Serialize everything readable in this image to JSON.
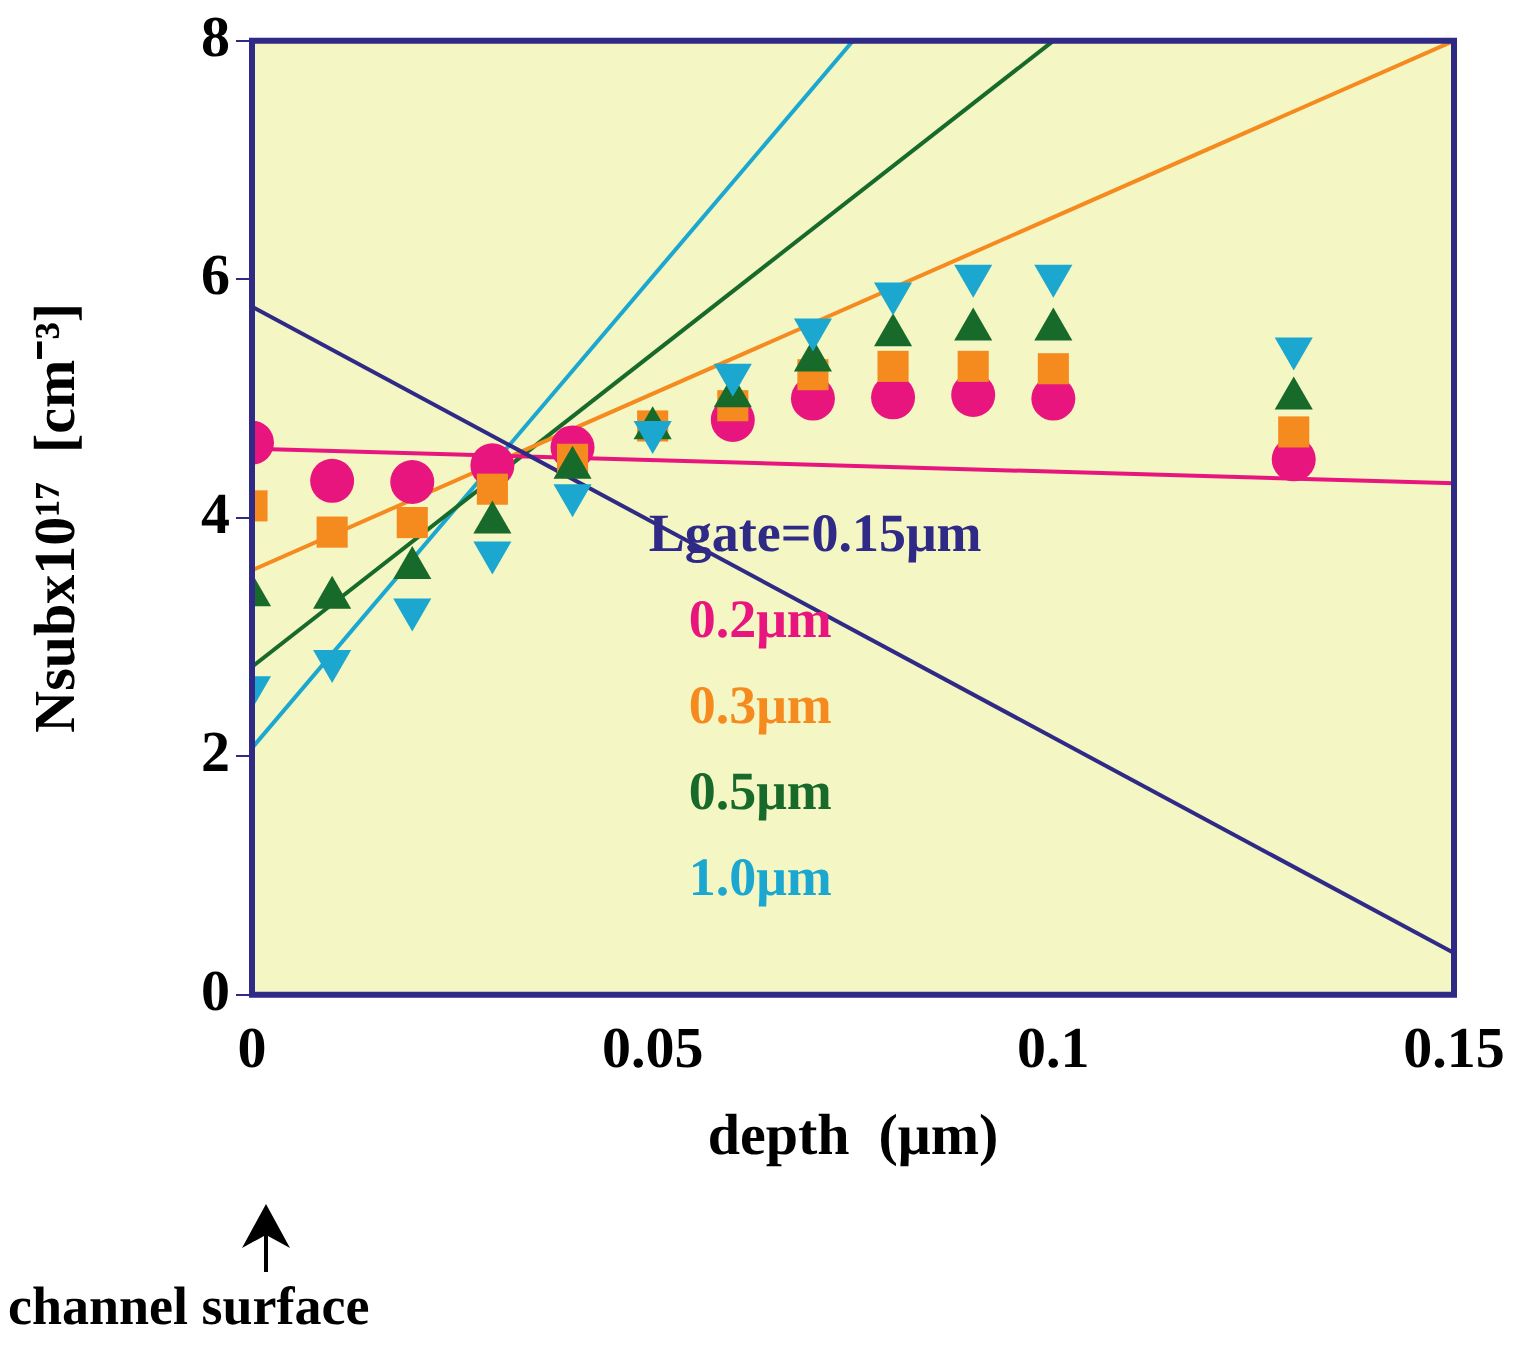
{
  "chart_data": {
    "type": "scatter",
    "xlabel": "depth  (μm)",
    "ylabel": "Nsubx10¹⁷  [cm⁻³]",
    "annotations": [
      "channel surface"
    ],
    "x": [
      0,
      0.01,
      0.02,
      0.03,
      0.04,
      0.05,
      0.06,
      0.07,
      0.08,
      0.09,
      0.1,
      0.13
    ],
    "series": [
      {
        "name": "Lgate=0.15μm",
        "type": "line",
        "color": "#2e2a86",
        "x": [
          0,
          0.15
        ],
        "values": [
          5.77,
          0.35
        ],
        "marker": "none"
      },
      {
        "type": "line",
        "color": "#e8157e",
        "x": [
          0,
          0.15
        ],
        "values": [
          4.58,
          4.29
        ],
        "marker": "none"
      },
      {
        "type": "line",
        "color": "#f58a1f",
        "x": [
          0,
          0.15
        ],
        "values": [
          3.56,
          8
        ]
      },
      {
        "type": "line",
        "color": "#176a2a",
        "x": [
          0,
          0.1
        ],
        "values": [
          2.75,
          8
        ],
        "marker": "none"
      },
      {
        "type": "line",
        "color": "#1ba7d0",
        "x": [
          0,
          0.075
        ],
        "values": [
          2.07,
          8
        ],
        "marker": "none"
      },
      {
        "name": "0.2μm",
        "color": "#e8157e",
        "marker": "circle",
        "values": [
          4.63,
          4.31,
          4.3,
          4.44,
          4.59,
          null,
          4.82,
          5.0,
          5.01,
          5.03,
          5.0,
          4.49
        ]
      },
      {
        "name": "0.3μm",
        "color": "#f58a1f",
        "marker": "square",
        "values": [
          4.1,
          3.88,
          3.96,
          4.24,
          4.49,
          4.77,
          4.94,
          5.2,
          5.27,
          5.27,
          5.25,
          4.72
        ]
      },
      {
        "name": "0.5μm",
        "color": "#176a2a",
        "marker": "triangle",
        "values": [
          3.35,
          3.33,
          3.58,
          3.96,
          4.42,
          4.75,
          5.02,
          5.32,
          5.53,
          5.58,
          5.58,
          5.0
        ]
      },
      {
        "name": "1.0μm",
        "color": "#1ba7d0",
        "marker": "triangle-down",
        "values": [
          2.58,
          2.8,
          3.23,
          3.71,
          4.19,
          4.72,
          5.2,
          5.58,
          5.88,
          6.03,
          6.03,
          5.42
        ]
      }
    ],
    "xlim": [
      0,
      0.15
    ],
    "xticks": [
      0,
      0.05,
      0.1,
      0.15
    ],
    "ylim": [
      0,
      8
    ],
    "yticks": [
      0,
      2,
      4,
      6,
      8
    ],
    "grid": false,
    "legend": "bottom"
  }
}
